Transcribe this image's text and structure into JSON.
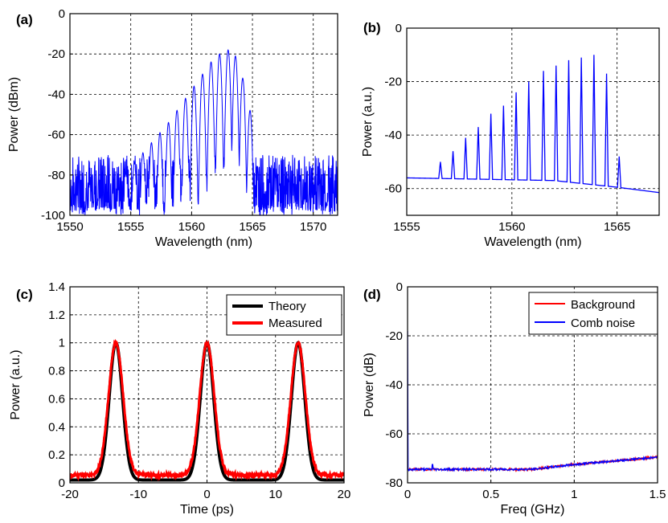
{
  "figure": {
    "panels": [
      {
        "id": "a",
        "panel_label": "(a)",
        "xlabel": "Wavelength (nm)",
        "ylabel": "Power (dBm)",
        "xticks": [
          1550,
          1555,
          1560,
          1565,
          1570
        ],
        "yticks": [
          -100,
          -80,
          -60,
          -40,
          -20,
          0
        ]
      },
      {
        "id": "b",
        "panel_label": "(b)",
        "xlabel": "Wavelength (nm)",
        "ylabel": "Power (a.u.)",
        "xticks": [
          1555,
          1560,
          1565
        ],
        "yticks": [
          -60,
          -40,
          -20,
          0
        ]
      },
      {
        "id": "c",
        "panel_label": "(c)",
        "xlabel": "Time (ps)",
        "ylabel": "Power (a.u.)",
        "xticks": [
          -20,
          -10,
          0,
          10,
          20
        ],
        "yticks": [
          0,
          0.2,
          0.4,
          0.6,
          0.8,
          1,
          1.2,
          1.4
        ],
        "legend": [
          "Theory",
          "Measured"
        ]
      },
      {
        "id": "d",
        "panel_label": "(d)",
        "xlabel": "Freq (GHz)",
        "ylabel": "Power (dB)",
        "xticks": [
          0,
          0.5,
          1,
          1.5
        ],
        "yticks": [
          -80,
          -60,
          -40,
          -20,
          0
        ],
        "legend": [
          "Background",
          "Comb noise"
        ]
      }
    ]
  },
  "chart_data": [
    {
      "type": "line",
      "panel": "(a)",
      "xlabel": "Wavelength (nm)",
      "ylabel": "Power (dBm)",
      "xlim": [
        1550,
        1572
      ],
      "ylim": [
        -100,
        0
      ],
      "grid": true,
      "color": "#0000ff",
      "comb": {
        "peaks_x": [
          1554.6,
          1555.3,
          1556.0,
          1556.7,
          1557.4,
          1558.1,
          1558.8,
          1559.5,
          1560.2,
          1560.9,
          1561.6,
          1562.3,
          1563.0,
          1563.6,
          1564.2,
          1564.8
        ],
        "peaks_y": [
          -79,
          -74,
          -69,
          -64,
          -59,
          -54,
          -48,
          -42,
          -36,
          -30,
          -24,
          -20,
          -18,
          -21,
          -32,
          -48
        ],
        "noise_floor_range": [
          -100,
          -68
        ]
      }
    },
    {
      "type": "line",
      "panel": "(b)",
      "xlabel": "Wavelength (nm)",
      "ylabel": "Power (a.u.)",
      "xlim": [
        1555,
        1567
      ],
      "ylim": [
        -70,
        0
      ],
      "grid": true,
      "color": "#0000ff",
      "baseline": {
        "x": [
          1555,
          1562,
          1565,
          1567
        ],
        "y": [
          -56,
          -57,
          -59.5,
          -61.5
        ]
      },
      "peaks_x": [
        1556.6,
        1557.2,
        1557.8,
        1558.4,
        1559.0,
        1559.6,
        1560.2,
        1560.8,
        1561.5,
        1562.1,
        1562.7,
        1563.3,
        1563.9,
        1564.5,
        1565.1
      ],
      "peaks_y": [
        -50,
        -46,
        -41,
        -37,
        -32,
        -29,
        -24,
        -20,
        -16,
        -14,
        -12,
        -11,
        -10,
        -17,
        -48
      ]
    },
    {
      "type": "line",
      "panel": "(c)",
      "xlabel": "Time (ps)",
      "ylabel": "Power (a.u.)",
      "xlim": [
        -20,
        20
      ],
      "ylim": [
        0,
        1.4
      ],
      "grid": true,
      "pulse_centers": [
        -13.3,
        0,
        13.3
      ],
      "series": [
        {
          "name": "Theory",
          "color": "#000000",
          "peak": 1.0,
          "fwhm_ps": 2.3,
          "floor": 0.02
        },
        {
          "name": "Measured",
          "color": "#ff0000",
          "peak": 1.0,
          "fwhm_ps": 2.5,
          "floor": 0.055
        }
      ]
    },
    {
      "type": "line",
      "panel": "(d)",
      "xlabel": "Freq (GHz)",
      "ylabel": "Power (dB)",
      "xlim": [
        0,
        1.5
      ],
      "ylim": [
        -80,
        0
      ],
      "grid": true,
      "series": [
        {
          "name": "Background",
          "color": "#ff0000",
          "x": [
            0,
            0.25,
            0.5,
            0.75,
            1.0,
            1.25,
            1.5
          ],
          "y": [
            -74.5,
            -74.5,
            -74.5,
            -74.5,
            -72.5,
            -71.0,
            -69.5
          ]
        },
        {
          "name": "Comb noise",
          "color": "#0000ff",
          "x": [
            0,
            0.003,
            0.01,
            0.25,
            0.5,
            0.75,
            1.0,
            1.25,
            1.5
          ],
          "y": [
            -18,
            -74.5,
            -74.5,
            -74.5,
            -74.5,
            -74.5,
            -72.5,
            -71.0,
            -69.5
          ]
        }
      ]
    }
  ]
}
